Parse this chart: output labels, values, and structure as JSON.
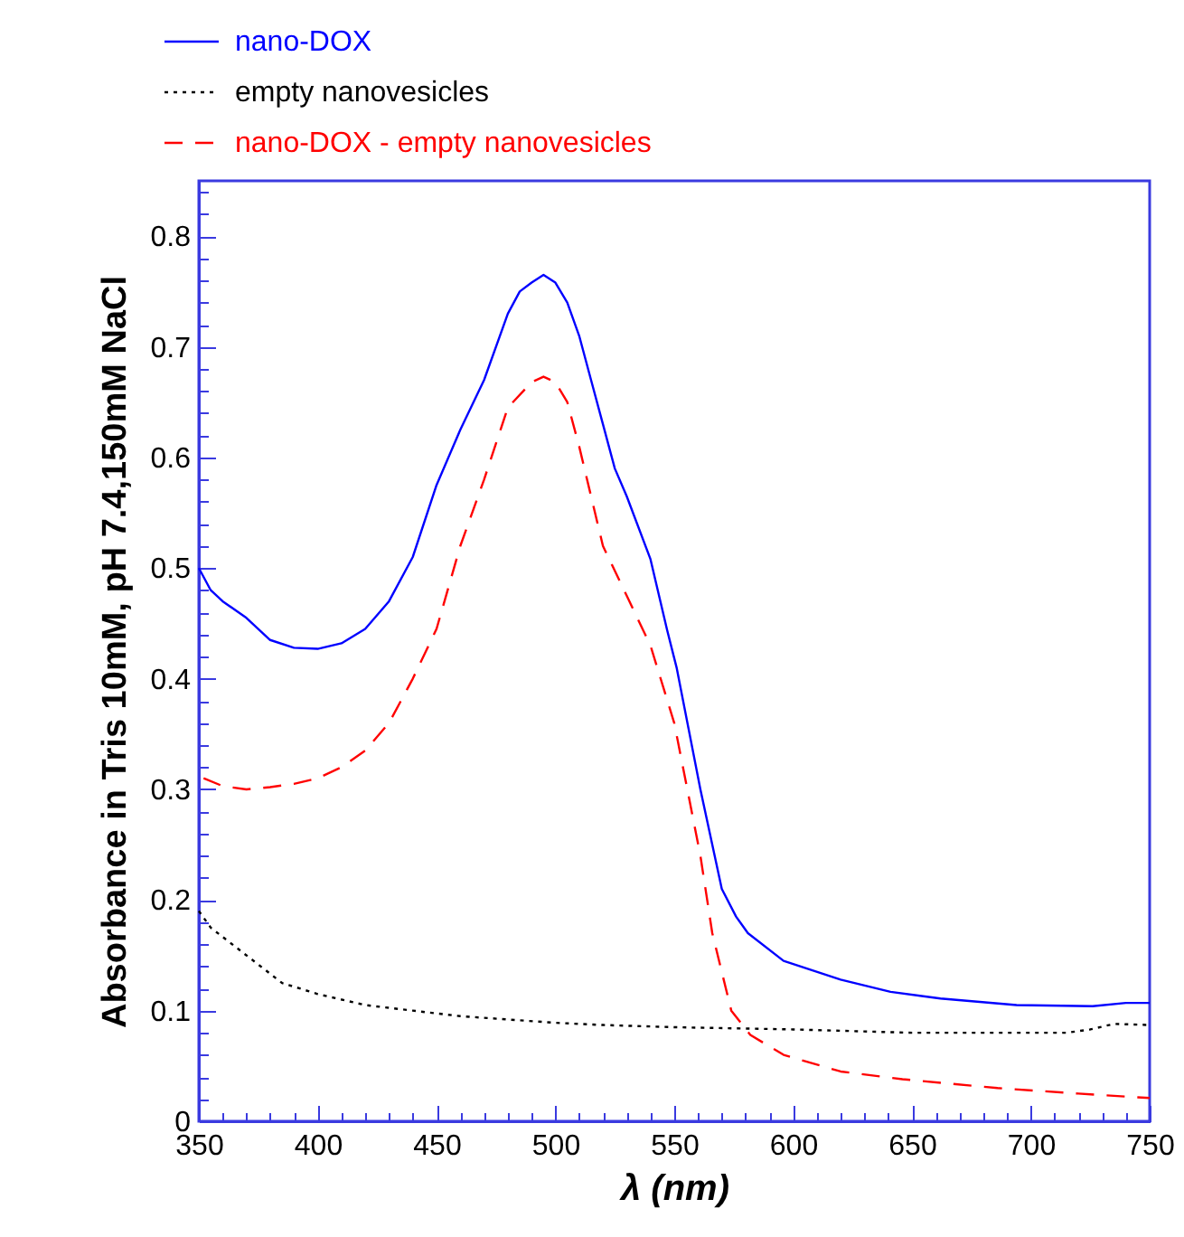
{
  "chart_data": {
    "type": "line",
    "xlabel": "λ (nm)",
    "ylabel": "Absorbance in Tris 10mM, pH 7.4,150mM NaCl",
    "legend": "top left",
    "grid": false,
    "marker": "none",
    "xlim": [
      350,
      750
    ],
    "ylim": [
      0,
      0.85
    ],
    "xticks": [
      350,
      {
        "value": 360,
        "label": null
      },
      {
        "value": 370,
        "label": null
      },
      {
        "value": 380,
        "label": null
      },
      {
        "value": 390,
        "label": null
      },
      400,
      {
        "value": 410,
        "label": null
      },
      {
        "value": 420,
        "label": null
      },
      {
        "value": 430,
        "label": null
      },
      {
        "value": 440,
        "label": null
      },
      450,
      {
        "value": 460,
        "label": null
      },
      {
        "value": 470,
        "label": null
      },
      {
        "value": 480,
        "label": null
      },
      {
        "value": 490,
        "label": null
      },
      500,
      {
        "value": 510,
        "label": null
      },
      {
        "value": 520,
        "label": null
      },
      {
        "value": 530,
        "label": null
      },
      {
        "value": 540,
        "label": null
      },
      550,
      {
        "value": 560,
        "label": null
      },
      {
        "value": 570,
        "label": null
      },
      {
        "value": 580,
        "label": null
      },
      {
        "value": 590,
        "label": null
      },
      600,
      {
        "value": 610,
        "label": null
      },
      {
        "value": 620,
        "label": null
      },
      {
        "value": 630,
        "label": null
      },
      {
        "value": 640,
        "label": null
      },
      650,
      {
        "value": 660,
        "label": null
      },
      {
        "value": 670,
        "label": null
      },
      {
        "value": 680,
        "label": null
      },
      {
        "value": 690,
        "label": null
      },
      700,
      {
        "value": 710,
        "label": null
      },
      {
        "value": 720,
        "label": null
      },
      {
        "value": 730,
        "label": null
      },
      {
        "value": 740,
        "label": null
      },
      750
    ],
    "yticks": [
      0,
      {
        "value": 0.02,
        "label": null
      },
      {
        "value": 0.04,
        "label": null
      },
      {
        "value": 0.06,
        "label": null
      },
      {
        "value": 0.08,
        "label": null
      },
      0.1,
      {
        "value": 0.12,
        "label": null
      },
      {
        "value": 0.14,
        "label": null
      },
      {
        "value": 0.16,
        "label": null
      },
      {
        "value": 0.18,
        "label": null
      },
      0.2,
      {
        "value": 0.22,
        "label": null
      },
      {
        "value": 0.24,
        "label": null
      },
      {
        "value": 0.26,
        "label": null
      },
      {
        "value": 0.28,
        "label": null
      },
      0.3,
      {
        "value": 0.32,
        "label": null
      },
      {
        "value": 0.34,
        "label": null
      },
      {
        "value": 0.36,
        "label": null
      },
      {
        "value": 0.38,
        "label": null
      },
      0.4,
      {
        "value": 0.42,
        "label": null
      },
      {
        "value": 0.44,
        "label": null
      },
      {
        "value": 0.46,
        "label": null
      },
      {
        "value": 0.48,
        "label": null
      },
      0.5,
      {
        "value": 0.52,
        "label": null
      },
      {
        "value": 0.54,
        "label": null
      },
      {
        "value": 0.56,
        "label": null
      },
      {
        "value": 0.58,
        "label": null
      },
      0.6,
      {
        "value": 0.62,
        "label": null
      },
      {
        "value": 0.64,
        "label": null
      },
      {
        "value": 0.66,
        "label": null
      },
      {
        "value": 0.68,
        "label": null
      },
      0.7,
      {
        "value": 0.72,
        "label": null
      },
      {
        "value": 0.74,
        "label": null
      },
      {
        "value": 0.76,
        "label": null
      },
      {
        "value": 0.78,
        "label": null
      },
      0.8,
      {
        "value": 0.82,
        "label": null
      },
      {
        "value": 0.84,
        "label": null
      }
    ],
    "series": [
      {
        "name": "nano-DOX",
        "color": "#0000ff",
        "line_style": "solid",
        "x": [
          350,
          355,
          360,
          370,
          380,
          390,
          400,
          410,
          420,
          430,
          440,
          450,
          460,
          470,
          480,
          485,
          490,
          495,
          500,
          505,
          510,
          515,
          520,
          525,
          530,
          540,
          547,
          551,
          561,
          570,
          576,
          581,
          596,
          620,
          641,
          662,
          694,
          726,
          740,
          750
        ],
        "values": [
          0.5,
          0.48,
          0.47,
          0.455,
          0.435,
          0.428,
          0.427,
          0.432,
          0.445,
          0.47,
          0.51,
          0.575,
          0.625,
          0.67,
          0.73,
          0.75,
          0.758,
          0.765,
          0.758,
          0.74,
          0.71,
          0.67,
          0.63,
          0.59,
          0.565,
          0.508,
          0.444,
          0.41,
          0.3,
          0.21,
          0.185,
          0.17,
          0.145,
          0.128,
          0.117,
          0.111,
          0.105,
          0.104,
          0.107,
          0.107
        ]
      },
      {
        "name": "empty nanovesicles",
        "color": "#000000",
        "line_style": "dotted",
        "x": [
          350,
          355,
          370,
          385,
          400,
          420,
          440,
          460,
          480,
          500,
          520,
          550,
          600,
          650,
          700,
          715,
          725,
          735,
          750
        ],
        "values": [
          0.19,
          0.175,
          0.15,
          0.125,
          0.115,
          0.105,
          0.1,
          0.095,
          0.092,
          0.089,
          0.087,
          0.085,
          0.083,
          0.08,
          0.08,
          0.08,
          0.083,
          0.088,
          0.087
        ]
      },
      {
        "name": "nano-DOX - empty nanovesicles",
        "color": "#ff0000",
        "line_style": "dashed",
        "x": [
          352,
          360,
          370,
          380,
          390,
          400,
          410,
          420,
          430,
          440,
          450,
          460,
          470,
          480,
          490,
          495,
          500,
          505,
          510,
          520,
          530,
          540,
          550,
          561,
          566,
          574,
          582,
          596,
          620,
          646,
          686,
          720,
          750
        ],
        "values": [
          0.31,
          0.303,
          0.3,
          0.302,
          0.305,
          0.31,
          0.32,
          0.335,
          0.36,
          0.4,
          0.445,
          0.52,
          0.58,
          0.645,
          0.668,
          0.673,
          0.668,
          0.65,
          0.61,
          0.52,
          0.475,
          0.43,
          0.36,
          0.24,
          0.17,
          0.1,
          0.078,
          0.06,
          0.045,
          0.038,
          0.03,
          0.025,
          0.021
        ]
      }
    ]
  }
}
